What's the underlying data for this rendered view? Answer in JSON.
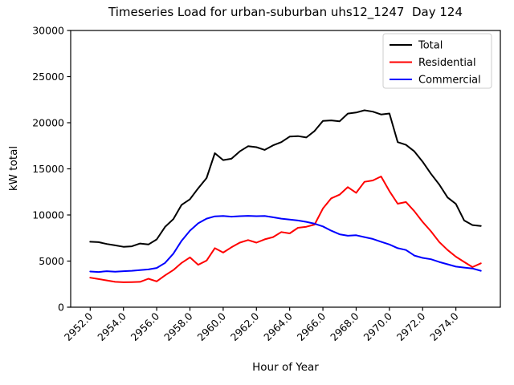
{
  "chart_data": {
    "type": "line",
    "title": "Timeseries Load for urban-suburban uhs12_1247  Day 124",
    "xlabel": "Hour of Year",
    "ylabel": "kW total",
    "x_start": 2952.0,
    "x_step": 0.5,
    "xlim": [
      2950.825,
      2976.675
    ],
    "ylim": [
      0,
      30000
    ],
    "grid": false,
    "legend_position": "upper right",
    "legend_border_color": "#cccccc",
    "background_color": "#ffffff",
    "x_ticks": [
      2952,
      2954,
      2956,
      2958,
      2960,
      2962,
      2964,
      2966,
      2968,
      2970,
      2972,
      2974
    ],
    "x_tick_labels": [
      "2952.0",
      "2954.0",
      "2956.0",
      "2958.0",
      "2960.0",
      "2962.0",
      "2964.0",
      "2966.0",
      "2968.0",
      "2970.0",
      "2972.0",
      "2974.0"
    ],
    "y_ticks": [
      0,
      5000,
      10000,
      15000,
      20000,
      25000,
      30000
    ],
    "y_tick_labels": [
      "0",
      "5000",
      "10000",
      "15000",
      "20000",
      "25000",
      "30000"
    ],
    "series": [
      {
        "name": "Total",
        "color": "#000000",
        "values": [
          7100,
          7050,
          6850,
          6700,
          6550,
          6600,
          6900,
          6800,
          7350,
          8700,
          9550,
          11100,
          11700,
          12900,
          14000,
          16700,
          15950,
          16100,
          16900,
          17450,
          17350,
          17050,
          17550,
          17900,
          18500,
          18550,
          18400,
          19100,
          20200,
          20250,
          20150,
          20990,
          21100,
          21350,
          21200,
          20900,
          21000,
          17900,
          17600,
          16900,
          15770,
          14460,
          13300,
          11900,
          11200,
          9400,
          8900,
          8810
        ]
      },
      {
        "name": "Residential",
        "color": "#ff0000",
        "values": [
          3200,
          3050,
          2900,
          2750,
          2700,
          2720,
          2750,
          3090,
          2800,
          3450,
          4030,
          4800,
          5400,
          4600,
          5050,
          6400,
          5920,
          6500,
          7000,
          7280,
          7000,
          7360,
          7600,
          8150,
          8000,
          8610,
          8720,
          8960,
          10700,
          11800,
          12200,
          13020,
          12400,
          13590,
          13740,
          14170,
          12580,
          11220,
          11400,
          10410,
          9250,
          8230,
          7070,
          6200,
          5480,
          4900,
          4350,
          4760
        ]
      },
      {
        "name": "Commercial",
        "color": "#0000ff",
        "values": [
          3870,
          3820,
          3900,
          3850,
          3900,
          3950,
          4030,
          4100,
          4250,
          4800,
          5800,
          7200,
          8300,
          9100,
          9600,
          9850,
          9890,
          9820,
          9870,
          9900,
          9870,
          9890,
          9750,
          9600,
          9500,
          9400,
          9250,
          9050,
          8760,
          8300,
          7900,
          7750,
          7800,
          7600,
          7400,
          7100,
          6800,
          6400,
          6200,
          5600,
          5350,
          5200,
          4900,
          4650,
          4400,
          4300,
          4200,
          3950
        ]
      }
    ]
  }
}
